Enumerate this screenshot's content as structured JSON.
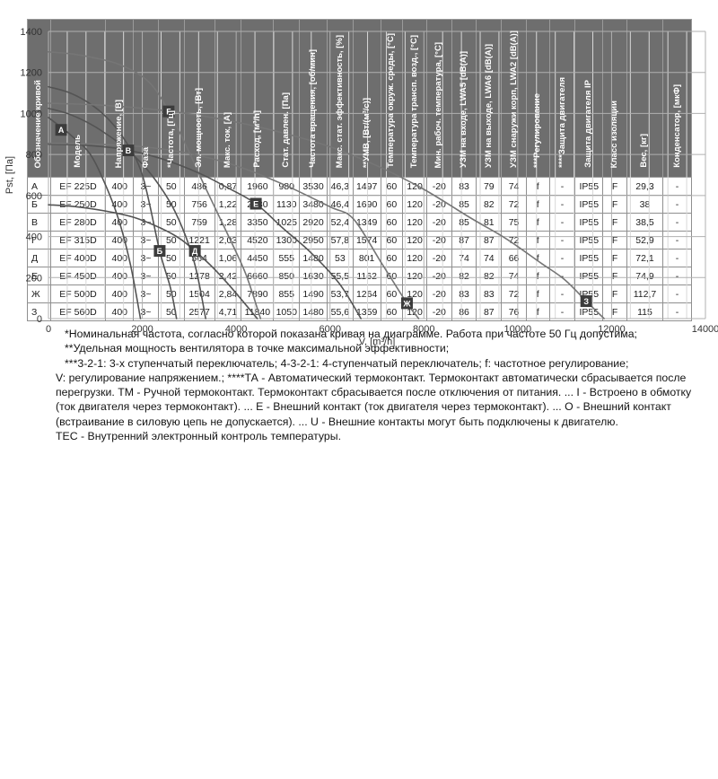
{
  "chart_data": {
    "type": "line",
    "title": "",
    "xlabel": "V, [m³/h]",
    "ylabel": "Pst, [Па]",
    "xlim": [
      0,
      14000
    ],
    "ylim": [
      0,
      1400
    ],
    "xticks": [
      0,
      2000,
      4000,
      6000,
      8000,
      10000,
      12000,
      14000
    ],
    "yticks": [
      0,
      200,
      400,
      600,
      800,
      1000,
      1200,
      1400
    ],
    "x_minor_step": 400,
    "x_major_step": 2000,
    "y_step": 200,
    "grid": "on",
    "legend_position": "markers-on-curves",
    "series": [
      {
        "name": "А",
        "model": "EF 225D",
        "color": "#545454",
        "marker": [
          270,
          920
        ],
        "points": [
          [
            0,
            980
          ],
          [
            200,
            945
          ],
          [
            500,
            890
          ],
          [
            880,
            805
          ],
          [
            1200,
            660
          ],
          [
            1500,
            480
          ],
          [
            1750,
            260
          ],
          [
            1960,
            0
          ]
        ]
      },
      {
        "name": "Б",
        "model": "EF 250D",
        "color": "#545454",
        "marker": [
          2370,
          330
        ],
        "points": [
          [
            0,
            1130
          ],
          [
            400,
            1105
          ],
          [
            800,
            1060
          ],
          [
            1200,
            990
          ],
          [
            1600,
            880
          ],
          [
            2000,
            700
          ],
          [
            2370,
            330
          ],
          [
            2600,
            150
          ],
          [
            2730,
            0
          ]
        ]
      },
      {
        "name": "В",
        "model": "EF 280D",
        "color": "#545454",
        "marker": [
          1700,
          820
        ],
        "points": [
          [
            0,
            1025
          ],
          [
            400,
            1000
          ],
          [
            800,
            960
          ],
          [
            1200,
            905
          ],
          [
            1700,
            820
          ],
          [
            2200,
            700
          ],
          [
            2700,
            520
          ],
          [
            3100,
            280
          ],
          [
            3350,
            0
          ]
        ]
      },
      {
        "name": "Г",
        "model": "EF 315D",
        "color": "#767676",
        "marker": [
          2560,
          1010
        ],
        "points": [
          [
            0,
            1300
          ],
          [
            500,
            1290
          ],
          [
            1000,
            1270
          ],
          [
            1500,
            1240
          ],
          [
            2000,
            1180
          ],
          [
            2300,
            1110
          ],
          [
            2560,
            1010
          ],
          [
            2900,
            860
          ],
          [
            3300,
            660
          ],
          [
            3800,
            420
          ],
          [
            4200,
            220
          ],
          [
            4520,
            0
          ]
        ]
      },
      {
        "name": "Д",
        "model": "EF 400D",
        "color": "#545454",
        "marker": [
          3120,
          330
        ],
        "points": [
          [
            0,
            555
          ],
          [
            600,
            545
          ],
          [
            1200,
            525
          ],
          [
            1800,
            495
          ],
          [
            2400,
            440
          ],
          [
            2800,
            390
          ],
          [
            3120,
            330
          ],
          [
            3500,
            250
          ],
          [
            3900,
            150
          ],
          [
            4450,
            0
          ]
        ]
      },
      {
        "name": "Е",
        "model": "EF 450D",
        "color": "#545454",
        "marker": [
          4420,
          560
        ],
        "points": [
          [
            0,
            850
          ],
          [
            800,
            845
          ],
          [
            1600,
            825
          ],
          [
            2400,
            780
          ],
          [
            3200,
            710
          ],
          [
            3800,
            640
          ],
          [
            4420,
            560
          ],
          [
            5000,
            440
          ],
          [
            5600,
            320
          ],
          [
            6200,
            170
          ],
          [
            6660,
            0
          ]
        ]
      },
      {
        "name": "Ж",
        "model": "EF 500D",
        "color": "#767676",
        "marker": [
          7640,
          75
        ],
        "points": [
          [
            0,
            855
          ],
          [
            1000,
            850
          ],
          [
            2000,
            838
          ],
          [
            3000,
            805
          ],
          [
            4000,
            745
          ],
          [
            5000,
            655
          ],
          [
            6000,
            545
          ],
          [
            6500,
            485
          ],
          [
            7100,
            270
          ],
          [
            7640,
            75
          ],
          [
            7890,
            0
          ]
        ]
      },
      {
        "name": "З",
        "model": "EF 560D",
        "color": "#767676",
        "marker": [
          11460,
          85
        ],
        "points": [
          [
            0,
            1050
          ],
          [
            1000,
            1042
          ],
          [
            2000,
            1025
          ],
          [
            3000,
            998
          ],
          [
            4000,
            958
          ],
          [
            5000,
            905
          ],
          [
            6000,
            838
          ],
          [
            7000,
            745
          ],
          [
            8000,
            630
          ],
          [
            9000,
            490
          ],
          [
            9750,
            390
          ],
          [
            10500,
            270
          ],
          [
            11000,
            190
          ],
          [
            11460,
            85
          ],
          [
            11840,
            0
          ]
        ]
      }
    ]
  },
  "table": {
    "columns": [
      "Обозначение кривой",
      "Модель",
      "Напряжение, [В]",
      "Фаза",
      "*Частота, [Гц]",
      "Эл. мощность, [Вт]",
      "Макс. ток, [А]",
      "Расход, [м³/h]",
      "Стат. давлен. [Па]",
      "Частота вращения, [об/мин]",
      "Макс. стат. эффективность, [%]",
      "**УМВ, [Вт/(м³/с)]",
      "Температура окруж. среды, [°C]",
      "Температура трансп. возд., [°C]",
      "Мин. рабоч. температура, [°C]",
      "УЗМ на входе, LWA5 [dB(A)]",
      "УЗМ на выходе, LWA6 [dB(A)]",
      "УЗМ снаружи корп, LWA2 [dB(A)]",
      "***Регулирование",
      "****Защита двигателя",
      "Защита двигателя IP",
      "Класс изоляции",
      "Вес, [кг]",
      "Конденсатор, [мкФ]"
    ],
    "rows": [
      [
        "А",
        "EF 225D",
        "400",
        "3~",
        "50",
        "486",
        "0,87",
        "1960",
        "980",
        "3530",
        "46,3",
        "1497",
        "60",
        "120",
        "-20",
        "83",
        "79",
        "74",
        "f",
        "-",
        "IP55",
        "F",
        "29,3",
        "-"
      ],
      [
        "Б",
        "EF 250D",
        "400",
        "3~",
        "50",
        "756",
        "1,22",
        "2730",
        "1130",
        "3480",
        "46,4",
        "1690",
        "60",
        "120",
        "-20",
        "85",
        "82",
        "72",
        "f",
        "-",
        "IP55",
        "F",
        "38",
        "-"
      ],
      [
        "В",
        "EF 280D",
        "400",
        "3~",
        "50",
        "759",
        "1,28",
        "3350",
        "1025",
        "2920",
        "52,4",
        "1349",
        "60",
        "120",
        "-20",
        "85",
        "81",
        "75",
        "f",
        "-",
        "IP55",
        "F",
        "38,5",
        "-"
      ],
      [
        "Г",
        "EF 315D",
        "400",
        "3~",
        "50",
        "1221",
        "2,03",
        "4520",
        "1300",
        "2950",
        "57,8",
        "1574",
        "60",
        "120",
        "-20",
        "87",
        "87",
        "72",
        "f",
        "-",
        "IP55",
        "F",
        "52,9",
        "-"
      ],
      [
        "Д",
        "EF 400D",
        "400",
        "3~",
        "50",
        "564",
        "1,06",
        "4450",
        "555",
        "1480",
        "53",
        "801",
        "60",
        "120",
        "-20",
        "74",
        "74",
        "66",
        "f",
        "-",
        "IP55",
        "F",
        "72,1",
        "-"
      ],
      [
        "Е",
        "EF 450D",
        "400",
        "3~",
        "50",
        "1278",
        "2,42",
        "6660",
        "850",
        "1630",
        "55,5",
        "1162",
        "60",
        "120",
        "-20",
        "82",
        "82",
        "74",
        "f",
        "-",
        "IP55",
        "F",
        "74,9",
        "-"
      ],
      [
        "Ж",
        "EF 500D",
        "400",
        "3~",
        "50",
        "1504",
        "2,84",
        "7890",
        "855",
        "1490",
        "53,7",
        "1264",
        "60",
        "120",
        "-20",
        "83",
        "83",
        "72",
        "f",
        "-",
        "IP55",
        "F",
        "112,7",
        "-"
      ],
      [
        "З",
        "EF 560D",
        "400",
        "3~",
        "50",
        "2577",
        "4,71",
        "11840",
        "1050",
        "1480",
        "55,6",
        "1359",
        "60",
        "120",
        "-20",
        "86",
        "87",
        "76",
        "f",
        "-",
        "IP55",
        "F",
        "115",
        "-"
      ]
    ]
  },
  "notes": {
    "lines": [
      "*Номинальная частота, согласно которой показана кривая на диаграмме. Работа при частоте 50 Гц допустима;",
      "**Удельная мощность вентилятора в точке максимальной эффективности;",
      "***3-2-1: 3-х ступенчатый переключатель; 4-3-2-1: 4-ступенчатый переключатель; f: частотное регулирование;",
      "V: регулирование напряжением.; ****ТА - Автоматический термоконтакт. Термоконтакт автоматически сбрасывается после",
      "перегрузки. ТМ - Ручной термоконтакт. Термоконтакт сбрасывается после отключения от питания. ... I - Встроено в обмотку",
      "(ток двигателя через термоконтакт). ... Е - Внешний контакт (ток двигателя через термоконтакт). ... О - Внешний контакт",
      "(встраивание в силовую цепь не допускается). ... U - Внешние контакты могут быть подключены к двигателю.",
      "ТЕС - Внутренний электронный контроль температуры."
    ]
  },
  "colors": {
    "grid_major": "#b0b0b0",
    "grid_minor": "#d8d8d8",
    "axis_text": "#333333",
    "marker_bg": "#3c3c3c",
    "marker_text": "#ffffff",
    "header_bg": "#6e6e6e",
    "header_text": "#ffffff",
    "cell_text": "#1c1c1c"
  }
}
